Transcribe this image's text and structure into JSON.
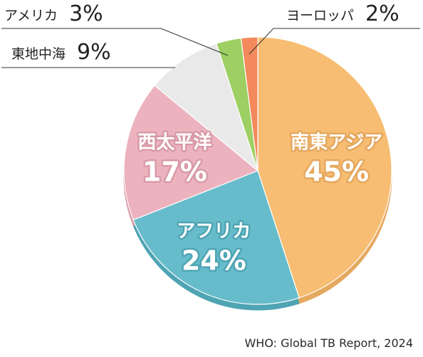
{
  "chart_data": {
    "type": "pie",
    "title": "",
    "start_angle_deg": 0,
    "direction": "clockwise",
    "slices": [
      {
        "label": "南東アジア",
        "value": 45,
        "value_text": "45%",
        "color": "#f7bd72",
        "side_color": "#e4a85e",
        "label_style": "inside"
      },
      {
        "label": "アフリカ",
        "value": 24,
        "value_text": "24%",
        "color": "#67bccb",
        "side_color": "#4ea4b3",
        "label_style": "inside"
      },
      {
        "label": "西太平洋",
        "value": 17,
        "value_text": "17%",
        "color": "#ecb3bf",
        "side_color": "#d89aa7",
        "label_style": "inside"
      },
      {
        "label": "東地中海",
        "value": 9,
        "value_text": "9%",
        "color": "#e9e9e9",
        "side_color": "#d3d3d3",
        "label_style": "callout"
      },
      {
        "label": "アメリカ",
        "value": 3,
        "value_text": "3%",
        "color": "#9dcf62",
        "side_color": "#84b84c",
        "label_style": "callout"
      },
      {
        "label": "ヨーロッパ",
        "value": 2,
        "value_text": "2%",
        "color": "#f3895c",
        "side_color": "#dc7348",
        "label_style": "callout"
      }
    ]
  },
  "source": "WHO: Global TB Report, 2024"
}
